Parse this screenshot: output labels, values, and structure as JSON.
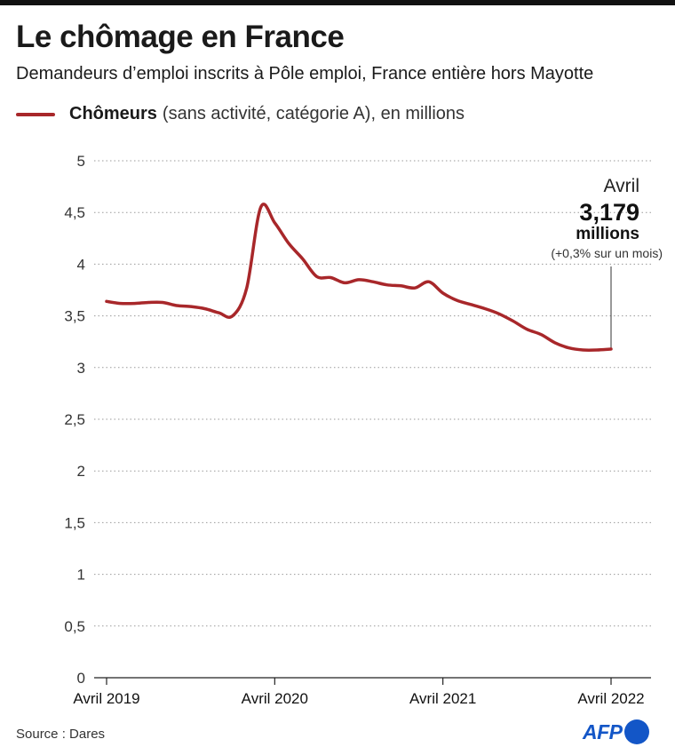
{
  "header": {
    "title": "Le chômage en France",
    "subtitle": "Demandeurs d’emploi inscrits à Pôle emploi, France entière hors Mayotte"
  },
  "legend": {
    "bold": "Chômeurs",
    "rest": "(sans activité, catégorie A), en millions"
  },
  "annotation": {
    "month": "Avril",
    "value": "3,179",
    "unit": "millions",
    "change": "(+0,3% sur un mois)"
  },
  "footer": {
    "source": "Source : Dares",
    "logo": "AFP"
  },
  "colors": {
    "line": "#a8272a",
    "grid": "#9a9a9a",
    "brand": "#1356c7"
  },
  "chart_data": {
    "type": "line",
    "title": "Le chômage en France",
    "ylim": [
      0,
      5
    ],
    "y_ticks": [
      0,
      0.5,
      1,
      1.5,
      2,
      2.5,
      3,
      3.5,
      4,
      4.5,
      5
    ],
    "y_tick_labels": [
      "0",
      "0,5",
      "1",
      "1,5",
      "2",
      "2,5",
      "3",
      "3,5",
      "4",
      "4,5",
      "5"
    ],
    "x_ticks": [
      "2019-04",
      "2020-04",
      "2021-04",
      "2022-04"
    ],
    "x_tick_labels": [
      "Avril 2019",
      "Avril 2020",
      "Avril 2021",
      "Avril 2022"
    ],
    "grid": true,
    "legend_position": "top-left",
    "series": [
      {
        "name": "Chômeurs",
        "x": [
          "2019-04",
          "2019-05",
          "2019-06",
          "2019-07",
          "2019-08",
          "2019-09",
          "2019-10",
          "2019-11",
          "2019-12",
          "2020-01",
          "2020-02",
          "2020-03",
          "2020-04",
          "2020-05",
          "2020-06",
          "2020-07",
          "2020-08",
          "2020-09",
          "2020-10",
          "2020-11",
          "2020-12",
          "2021-01",
          "2021-02",
          "2021-03",
          "2021-04",
          "2021-05",
          "2021-06",
          "2021-07",
          "2021-08",
          "2021-09",
          "2021-10",
          "2021-11",
          "2021-12",
          "2022-01",
          "2022-02",
          "2022-03",
          "2022-04"
        ],
        "values": [
          3.64,
          3.62,
          3.62,
          3.63,
          3.63,
          3.6,
          3.59,
          3.57,
          3.53,
          3.5,
          3.77,
          4.55,
          4.4,
          4.2,
          4.05,
          3.88,
          3.87,
          3.82,
          3.85,
          3.83,
          3.8,
          3.79,
          3.77,
          3.83,
          3.72,
          3.65,
          3.61,
          3.57,
          3.52,
          3.45,
          3.37,
          3.32,
          3.24,
          3.19,
          3.17,
          3.17,
          3.179
        ]
      }
    ]
  }
}
